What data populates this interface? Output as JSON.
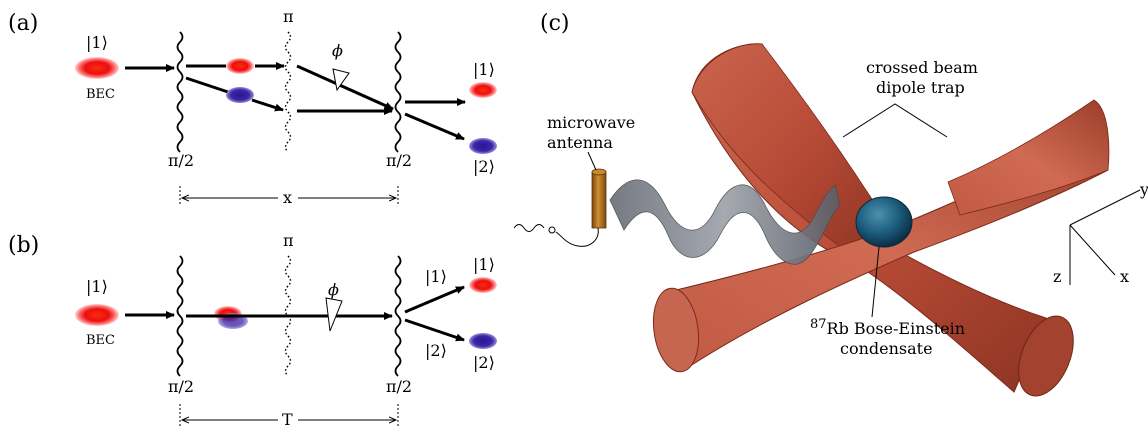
{
  "panel_a": {
    "label": "(a)",
    "input_state": "|1⟩",
    "bec_label": "BEC",
    "pi_top": "π",
    "pi_half_left": "π/2",
    "pi_half_right": "π/2",
    "phase": "ϕ",
    "out_state_1": "|1⟩",
    "out_state_2": "|2⟩",
    "span_label": "x"
  },
  "panel_b": {
    "label": "(b)",
    "input_state": "|1⟩",
    "bec_label": "BEC",
    "pi_top": "π",
    "pi_half_left": "π/2",
    "pi_half_right": "π/2",
    "phase": "ϕ",
    "path_state_1": "|1⟩",
    "path_state_2": "|2⟩",
    "out_state_1": "|1⟩",
    "out_state_2": "|2⟩",
    "span_label": "T"
  },
  "panel_c": {
    "label": "(c)",
    "trap_line1": "crossed beam",
    "trap_line2": "dipole trap",
    "antenna_line1": "microwave",
    "antenna_line2": "antenna",
    "bec_sup": "87",
    "bec_line1": "Rb Bose-Einstein",
    "bec_line2": "condensate",
    "axis_y": "y",
    "axis_z": "z",
    "axis_x": "x"
  },
  "colors": {
    "state1": "#e8100f",
    "state2": "#2a1690",
    "beam": "#b94c38",
    "condensate": "#1a5a7a",
    "antenna": "#b0701e"
  }
}
